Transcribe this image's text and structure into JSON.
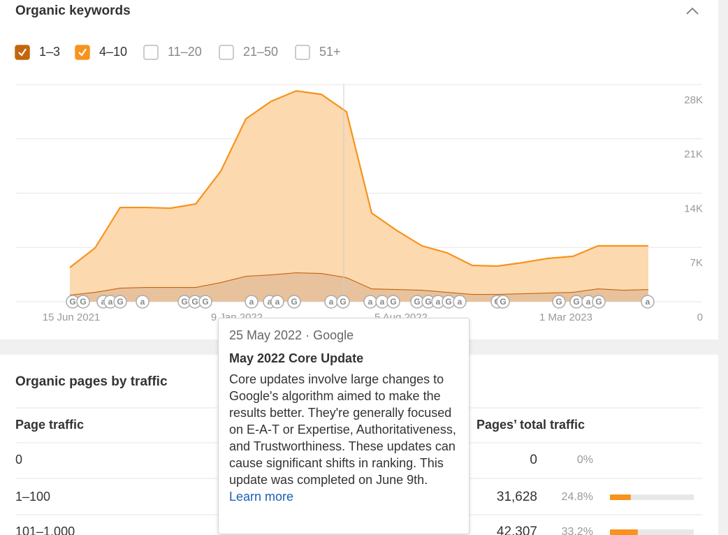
{
  "keywords_panel": {
    "title": "Organic keywords",
    "filters": [
      {
        "label": "1–3",
        "checked": true,
        "color": "#c4650d"
      },
      {
        "label": "4–10",
        "checked": true,
        "color": "#f7931e"
      },
      {
        "label": "11–20",
        "checked": false
      },
      {
        "label": "21–50",
        "checked": false
      },
      {
        "label": "51+",
        "checked": false
      }
    ],
    "chart": {
      "type": "area",
      "stacked": true,
      "ylim": [
        0,
        28000
      ],
      "yticks": [
        {
          "value": 28000,
          "label": "28K"
        },
        {
          "value": 21000,
          "label": "21K"
        },
        {
          "value": 14000,
          "label": "14K"
        },
        {
          "value": 7000,
          "label": "7K"
        },
        0
      ],
      "xlabels": [
        "15 Jun 2021",
        "9 Jan 2022",
        "5 Aug 2022",
        "1 Mar 2023"
      ],
      "series": [
        {
          "name": "1–3",
          "color": "#c4650d",
          "fill": "#e8c29c",
          "values": [
            900,
            1260,
            1800,
            1890,
            1890,
            1890,
            2520,
            3330,
            3510,
            3780,
            3690,
            3150,
            1710,
            1620,
            1530,
            1260,
            990,
            990,
            1080,
            1170,
            1260,
            1710,
            1530,
            1620
          ]
        },
        {
          "name": "4–10",
          "color": "#f7931e",
          "fill": "#fdd9b0",
          "values": [
            3510,
            5670,
            10350,
            10260,
            10170,
            10710,
            14310,
            20250,
            22320,
            23400,
            23040,
            21330,
            9720,
            7560,
            5670,
            5040,
            3690,
            3600,
            3960,
            4410,
            4590,
            5490,
            5670,
            5580
          ]
        }
      ],
      "events": [
        "G",
        "G",
        "a",
        "a",
        "G",
        "a",
        "G",
        "G",
        "G",
        "a",
        "a",
        "a",
        "G",
        "a",
        "G",
        "a",
        "a",
        "G",
        "G",
        "G",
        "a",
        "G",
        "a",
        "G",
        "G",
        "G",
        "G",
        "a",
        "G",
        "a"
      ]
    }
  },
  "tooltip": {
    "date": "25 May 2022",
    "source": "Google",
    "title": "May 2022 Core Update",
    "body": "Core updates involve large changes to Google's algorithm aimed to make the results better. They're generally focused on E-A-T or Expertise, Authoritativeness, and Trustworthiness. These updates can cause significant shifts in ranking. This update was completed on June 9th.",
    "link": "Learn more"
  },
  "pages_panel": {
    "title": "Organic pages by traffic",
    "columns": [
      "Page traffic",
      "Pages’ total traffic"
    ],
    "rows": [
      {
        "range": "0",
        "traffic": "0",
        "share": "0%"
      },
      {
        "range": "1–100",
        "traffic": "31,628",
        "share": "24.8%"
      },
      {
        "range": "101–1,000",
        "traffic": "42,307",
        "share": "33.2%"
      }
    ]
  }
}
